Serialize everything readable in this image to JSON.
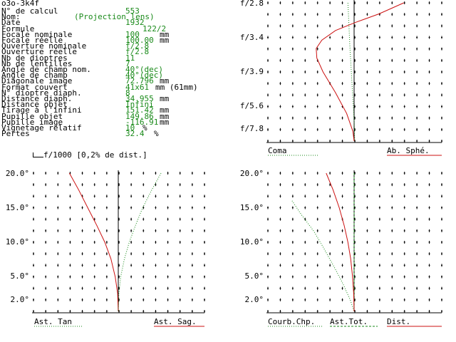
{
  "header": {
    "title": "o3o-3k4f"
  },
  "specs": [
    {
      "label": "N° de calcul",
      "value": "553",
      "unit": ""
    },
    {
      "label": "Nom:",
      "value": "(Projection lens)",
      "unit": ""
    },
    {
      "label": "Date",
      "value": "1932",
      "unit": ""
    },
    {
      "label": "Formule",
      "value": "122/2",
      "unit": ""
    },
    {
      "label": "Focale nominale",
      "value": "100",
      "unit": "mm"
    },
    {
      "label": "Focale réelle",
      "value": "100.00",
      "unit": "mm"
    },
    {
      "label": "Ouverture nominale",
      "value": "f/2.8",
      "unit": ""
    },
    {
      "label": "Ouverture réelle",
      "value": "f/2.8",
      "unit": ""
    },
    {
      "label": "Nb de dioptres",
      "value": "11",
      "unit": ""
    },
    {
      "label": "Nb de lentilles",
      "value": "7",
      "unit": ""
    },
    {
      "label": "Angle de champ nom.",
      "value": "40°(dec)",
      "unit": ""
    },
    {
      "label": "Angle de champ",
      "value": "40°(dec)",
      "unit": ""
    },
    {
      "label": "Diagonale image",
      "value": "72.796",
      "unit": "mm"
    },
    {
      "label": "Format couvert",
      "value": "41x61",
      "unit": "mm (61mm)"
    },
    {
      "label": "N° dioptre diaph.",
      "value": "8",
      "unit": ""
    },
    {
      "label": "Distance diaph.",
      "value": "34.955",
      "unit": "mm"
    },
    {
      "label": "Distance objet",
      "value": "Infini",
      "unit": ""
    },
    {
      "label": "Tirage à l'infini",
      "value": "151.42",
      "unit": "mm"
    },
    {
      "label": "Pupille objet",
      "value": "149.86",
      "unit": "mm"
    },
    {
      "label": "Pupille image",
      "value": "-116.91",
      "unit": "mm"
    },
    {
      "label": "Vignetage relatif",
      "value": "10",
      "unit": "%"
    },
    {
      "label": "Pertes",
      "value": "32.4",
      "unit": "%"
    }
  ],
  "scale_note": "f/1000 [0,2% de dist.]",
  "colors": {
    "red": "#cc1111",
    "green": "#1a8a1a",
    "black": "#000000"
  },
  "chart_data": [
    {
      "type": "line",
      "yticks": [
        "f/2.8",
        "f/3.4",
        "f/3.9",
        "f/5.6",
        "f/7.8"
      ],
      "legend": [
        "Coma",
        "Ab. Sphé."
      ],
      "series": [
        {
          "name": "Coma",
          "style": "dotted",
          "color": "green",
          "points": [
            [
              -1.0,
              0.0
            ],
            [
              -0.9,
              0.1
            ],
            [
              -0.7,
              0.3
            ],
            [
              -0.45,
              0.5
            ],
            [
              -0.2,
              0.7
            ],
            [
              0.0,
              0.85
            ],
            [
              0.1,
              1.0
            ]
          ]
        },
        {
          "name": "Ab. Sphé.",
          "style": "solid",
          "color": "red",
          "points": [
            [
              8.0,
              0.0
            ],
            [
              4.0,
              0.08
            ],
            [
              0.3,
              0.14
            ],
            [
              -3.0,
              0.2
            ],
            [
              -5.2,
              0.27
            ],
            [
              -6.1,
              0.33
            ],
            [
              -6.0,
              0.4
            ],
            [
              -5.0,
              0.5
            ],
            [
              -3.0,
              0.65
            ],
            [
              -1.2,
              0.8
            ],
            [
              -0.2,
              0.93
            ],
            [
              0.0,
              1.0
            ]
          ]
        }
      ]
    },
    {
      "type": "line",
      "yticks": [
        "20.0°",
        "15.0°",
        "10.0°",
        "5.0°",
        "2.0°"
      ],
      "legend": [
        "Ast. Tan",
        "Ast. Sag."
      ],
      "series": [
        {
          "name": "Ast. Tan",
          "style": "solid",
          "color": "red",
          "points": [
            [
              -8.0,
              0.0
            ],
            [
              -6.5,
              0.12
            ],
            [
              -5.0,
              0.25
            ],
            [
              -3.5,
              0.38
            ],
            [
              -2.2,
              0.5
            ],
            [
              -1.2,
              0.62
            ],
            [
              -0.5,
              0.75
            ],
            [
              -0.1,
              0.87
            ],
            [
              0.0,
              1.0
            ]
          ]
        },
        {
          "name": "Ast. Sag.",
          "style": "dotted",
          "color": "green",
          "points": [
            [
              7.0,
              0.0
            ],
            [
              5.5,
              0.12
            ],
            [
              4.0,
              0.25
            ],
            [
              2.8,
              0.38
            ],
            [
              1.8,
              0.5
            ],
            [
              1.0,
              0.62
            ],
            [
              0.4,
              0.75
            ],
            [
              0.1,
              0.87
            ],
            [
              0.0,
              1.0
            ]
          ]
        }
      ]
    },
    {
      "type": "line",
      "yticks": [
        "20.0°",
        "15.0°",
        "10.0°",
        "5.0°",
        "2.0°"
      ],
      "legend": [
        "Courb.Chp.",
        "Ast.Tot.",
        "Dist."
      ],
      "series": [
        {
          "name": "Courb.Chp.",
          "style": "dotted",
          "color": "green",
          "points": [
            [
              -10.0,
              0.2
            ],
            [
              -8.5,
              0.3
            ],
            [
              -6.5,
              0.42
            ],
            [
              -4.8,
              0.55
            ],
            [
              -3.2,
              0.68
            ],
            [
              -1.8,
              0.8
            ],
            [
              -0.6,
              0.92
            ],
            [
              0.0,
              1.0
            ]
          ]
        },
        {
          "name": "Ast.Tot.",
          "style": "dashed",
          "color": "green",
          "points": [
            [
              0.0,
              0.0
            ],
            [
              0.0,
              1.0
            ]
          ]
        },
        {
          "name": "Dist.",
          "style": "solid",
          "color": "red",
          "points": [
            [
              -4.5,
              0.0
            ],
            [
              -3.4,
              0.12
            ],
            [
              -2.4,
              0.25
            ],
            [
              -1.6,
              0.38
            ],
            [
              -1.0,
              0.5
            ],
            [
              -0.55,
              0.62
            ],
            [
              -0.25,
              0.75
            ],
            [
              -0.07,
              0.87
            ],
            [
              0.0,
              1.0
            ]
          ]
        }
      ]
    }
  ]
}
